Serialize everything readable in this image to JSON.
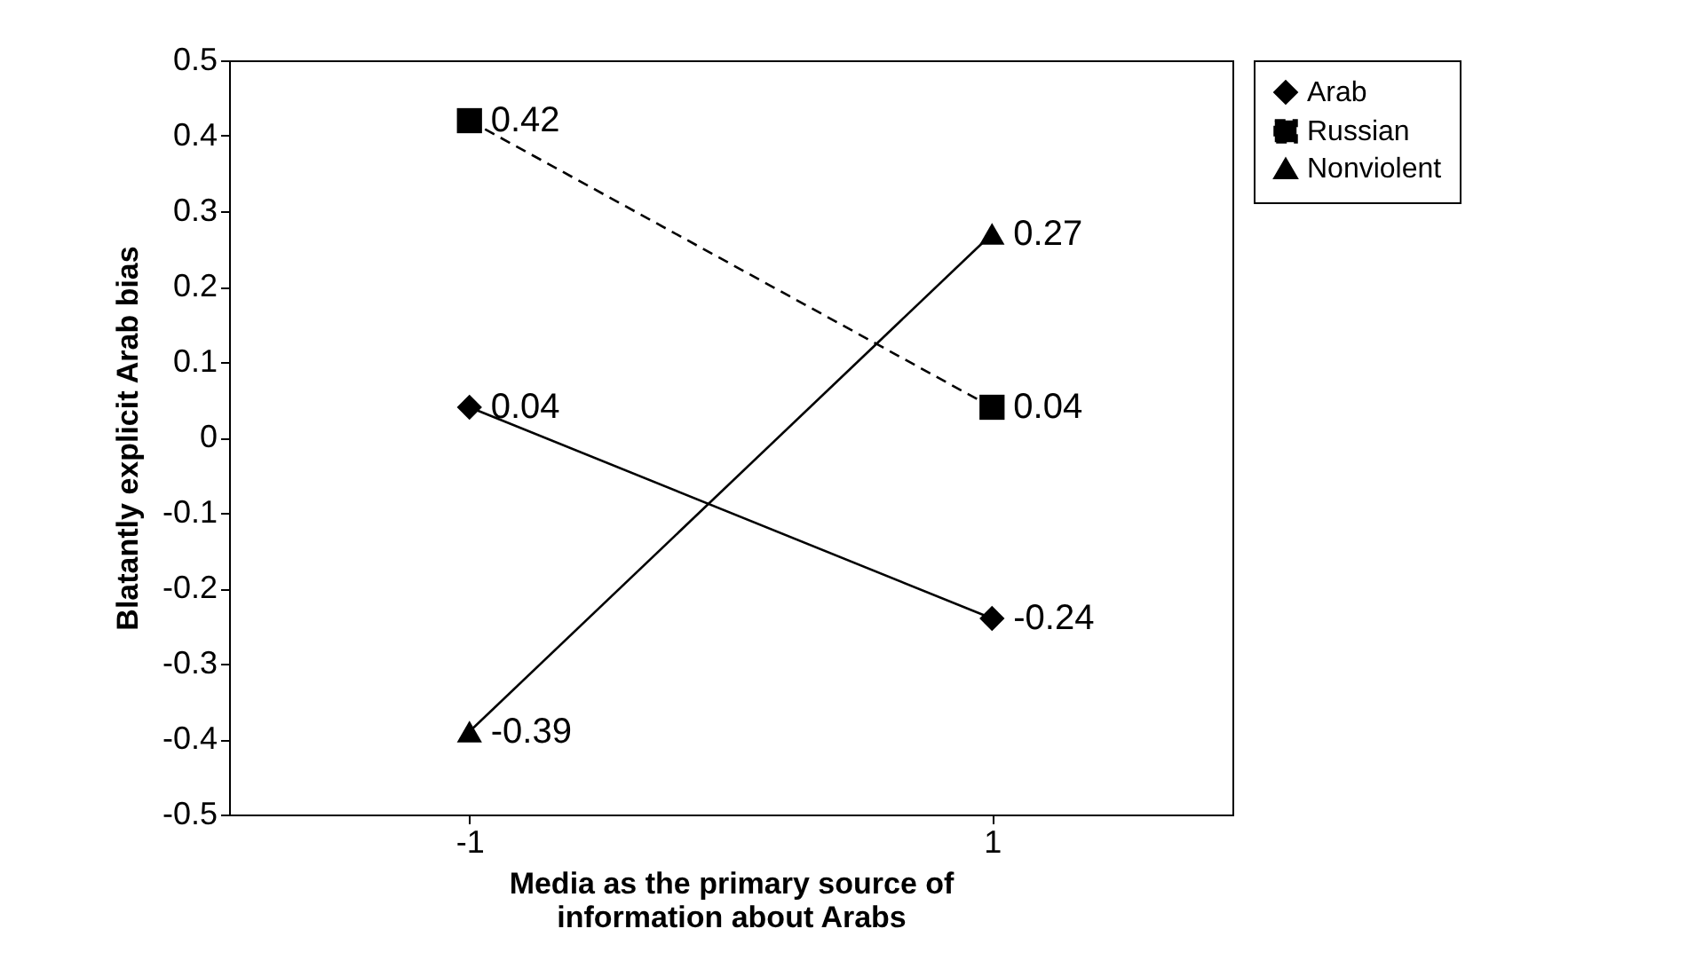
{
  "chart_data": {
    "type": "line",
    "xlabel": "Media as the primary source of information about Arabs",
    "ylabel": "Blatantly explicit Arab bias",
    "categories": [
      "-1",
      "1"
    ],
    "series": [
      {
        "name": "Arab",
        "color": "#000000",
        "values": [
          0.04,
          -0.24
        ],
        "marker": "diamond",
        "line_style": "solid"
      },
      {
        "name": "Russian",
        "color": "#000000",
        "values": [
          0.42,
          0.04
        ],
        "marker": "square",
        "line_style": "dashed"
      },
      {
        "name": "Nonviolent",
        "color": "#000000",
        "values": [
          -0.39,
          0.27
        ],
        "marker": "triangle",
        "line_style": "solid"
      }
    ],
    "ylim": [
      -0.5,
      0.5
    ],
    "yticks": [
      -0.5,
      -0.4,
      -0.3,
      -0.2,
      -0.1,
      0,
      0.1,
      0.2,
      0.3,
      0.4,
      0.5
    ],
    "grid": false,
    "legend": "right",
    "data_labels": true
  }
}
